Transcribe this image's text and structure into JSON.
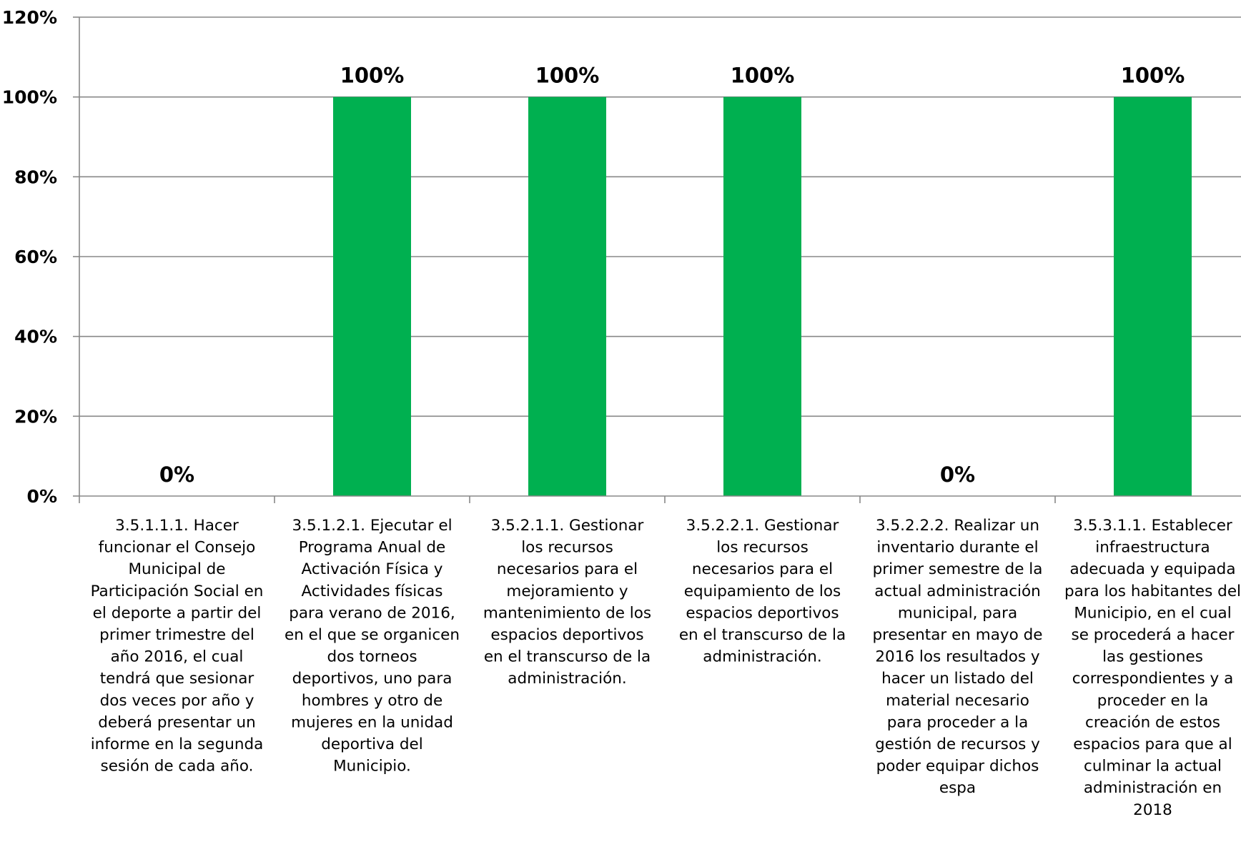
{
  "chart_data": {
    "type": "bar",
    "categories": [
      "3.5.1.1.1.  Hacer funcionar el Consejo Municipal de Participación Social en el deporte a partir del primer trimestre del año 2016, el cual tendrá que sesionar dos veces por año y deberá presentar un informe en la segunda sesión de cada año.",
      "3.5.1.2.1. Ejecutar el Programa Anual de Activación Física y Actividades físicas para verano de 2016, en el que se organicen dos torneos deportivos, uno para hombres y otro de mujeres en la unidad deportiva del Municipio.",
      "3.5.2.1.1. Gestionar los recursos necesarios para el mejoramiento y mantenimiento de los espacios deportivos en el transcurso de la administración.",
      "3.5.2.2.1. Gestionar los recursos necesarios para el equipamiento de los espacios deportivos en el transcurso de la administración.",
      "3.5.2.2.2. Realizar un inventario durante el primer semestre  de la actual administración municipal, para presentar en mayo de 2016 los resultados y hacer un listado del material necesario para proceder a la gestión de recursos y poder equipar dichos espa",
      "3.5.3.1.1. Establecer infraestructura adecuada y equipada para los habitantes del Municipio, en el cual se procederá a hacer las gestiones correspondientes y a proceder en la creación de estos espacios para que al culminar la actual administración en 2018"
    ],
    "category_lines": [
      [
        "3.5.1.1.1.  Hacer",
        "funcionar el Consejo",
        "Municipal de",
        "Participación Social en",
        "el deporte a partir del",
        "primer trimestre del",
        "año 2016, el cual",
        "tendrá que sesionar",
        "dos veces por año y",
        "deberá presentar un",
        "informe en la segunda",
        "sesión de cada año."
      ],
      [
        "3.5.1.2.1. Ejecutar el",
        "Programa Anual de",
        "Activación Física y",
        "Actividades físicas",
        "para verano de 2016,",
        "en el que se organicen",
        "dos torneos",
        "deportivos, uno para",
        "hombres y otro de",
        "mujeres en la unidad",
        "deportiva del",
        "Municipio."
      ],
      [
        "3.5.2.1.1. Gestionar",
        "los recursos",
        "necesarios para el",
        "mejoramiento y",
        "mantenimiento de los",
        "espacios deportivos",
        "en el transcurso de la",
        "administración."
      ],
      [
        "3.5.2.2.1. Gestionar",
        "los recursos",
        "necesarios para el",
        "equipamiento de los",
        "espacios deportivos",
        "en el transcurso de la",
        "administración."
      ],
      [
        "3.5.2.2.2. Realizar un",
        "inventario durante el",
        "primer semestre  de la",
        "actual administración",
        "municipal, para",
        "presentar en mayo de",
        "2016 los resultados y",
        "hacer un listado del",
        "material necesario",
        "para proceder a la",
        "gestión de recursos y",
        "poder equipar dichos",
        "espa"
      ],
      [
        "3.5.3.1.1. Establecer",
        "infraestructura",
        "adecuada y equipada",
        "para los habitantes del",
        "Municipio, en el cual",
        "se procederá a hacer",
        "las gestiones",
        "correspondientes y a",
        "proceder en la",
        "creación de estos",
        "espacios para que al",
        "culminar la actual",
        "administración en",
        "2018"
      ]
    ],
    "values": [
      0,
      100,
      100,
      100,
      0,
      100
    ],
    "data_labels": [
      "0%",
      "100%",
      "100%",
      "100%",
      "0%",
      "100%"
    ],
    "y_ticks": [
      0,
      20,
      40,
      60,
      80,
      100,
      120
    ],
    "y_tick_labels": [
      "0%",
      "20%",
      "40%",
      "60%",
      "80%",
      "100%",
      "120%"
    ],
    "ylim": [
      0,
      120
    ],
    "grid": true,
    "legend": "none",
    "title": "",
    "xlabel": "",
    "ylabel": "",
    "colors": {
      "bar": "#00B050",
      "grid": "#888888",
      "axis": "#888888",
      "text": "#000000"
    }
  }
}
